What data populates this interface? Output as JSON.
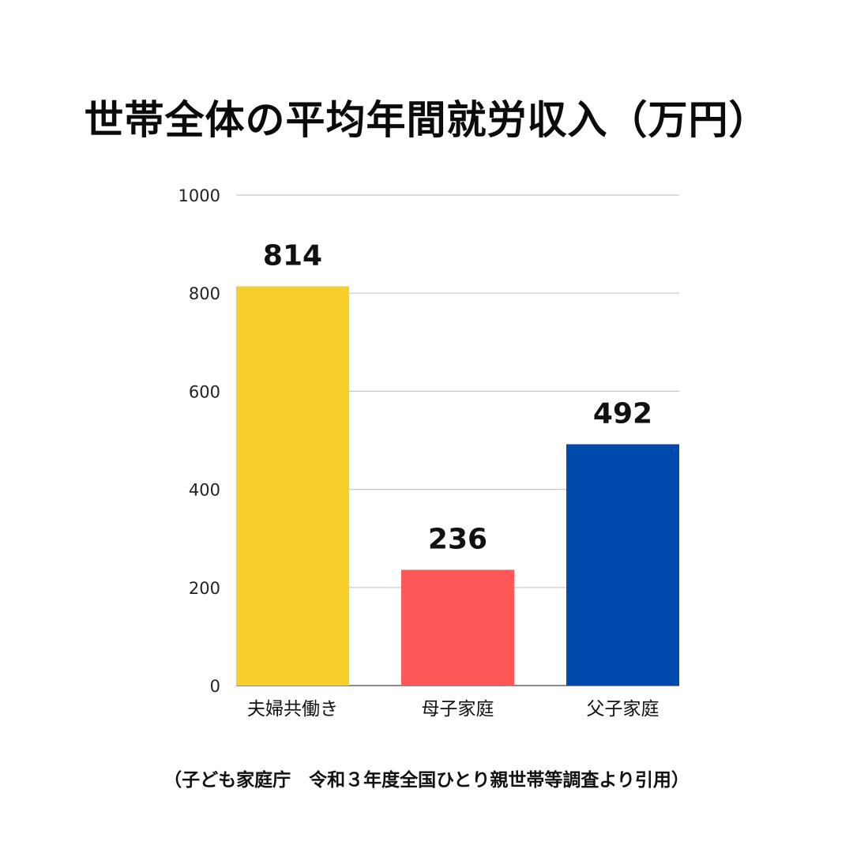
{
  "chart_data": {
    "type": "bar",
    "title": "世帯全体の平均年間就労収入（万円）",
    "categories": [
      "夫婦共働き",
      "母子家庭",
      "父子家庭"
    ],
    "values": [
      814,
      236,
      492
    ],
    "colors": [
      "#F7CF2D",
      "#FF5757",
      "#004AAD"
    ],
    "yticks": [
      0,
      200,
      400,
      600,
      800,
      1000
    ],
    "ylim": [
      0,
      1000
    ],
    "grid": true,
    "data_labels": true
  },
  "source": "（子ども家庭庁　令和３年度全国ひとり親世帯等調査より引用）"
}
